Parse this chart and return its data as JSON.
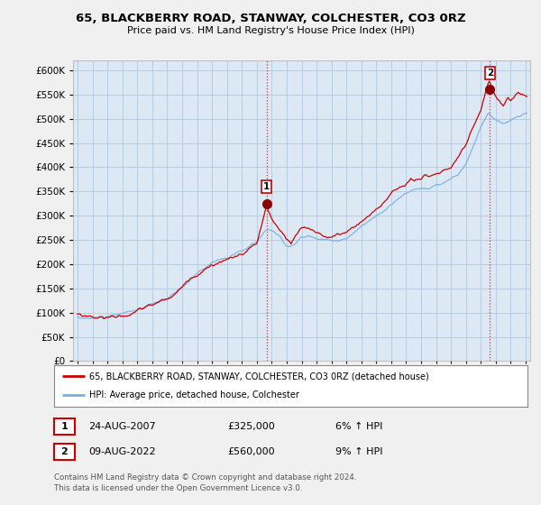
{
  "title": "65, BLACKBERRY ROAD, STANWAY, COLCHESTER, CO3 0RZ",
  "subtitle": "Price paid vs. HM Land Registry's House Price Index (HPI)",
  "ylim": [
    0,
    620000
  ],
  "yticks": [
    0,
    50000,
    100000,
    150000,
    200000,
    250000,
    300000,
    350000,
    400000,
    450000,
    500000,
    550000,
    600000
  ],
  "xlim_start": 1994.7,
  "xlim_end": 2025.3,
  "background_color": "#f0f0f0",
  "plot_bg_color": "#dce9f5",
  "grid_color": "#b0c8e0",
  "red_color": "#cc0000",
  "blue_color": "#7aade0",
  "marker1_x": 2007.65,
  "marker1_y": 325000,
  "marker1_label": "1",
  "marker2_x": 2022.6,
  "marker2_y": 560000,
  "marker2_label": "2",
  "legend_label_red": "65, BLACKBERRY ROAD, STANWAY, COLCHESTER, CO3 0RZ (detached house)",
  "legend_label_blue": "HPI: Average price, detached house, Colchester",
  "annotation1": [
    "1",
    "24-AUG-2007",
    "£325,000",
    "6% ↑ HPI"
  ],
  "annotation2": [
    "2",
    "09-AUG-2022",
    "£560,000",
    "9% ↑ HPI"
  ],
  "footer": "Contains HM Land Registry data © Crown copyright and database right 2024.\nThis data is licensed under the Open Government Licence v3.0."
}
